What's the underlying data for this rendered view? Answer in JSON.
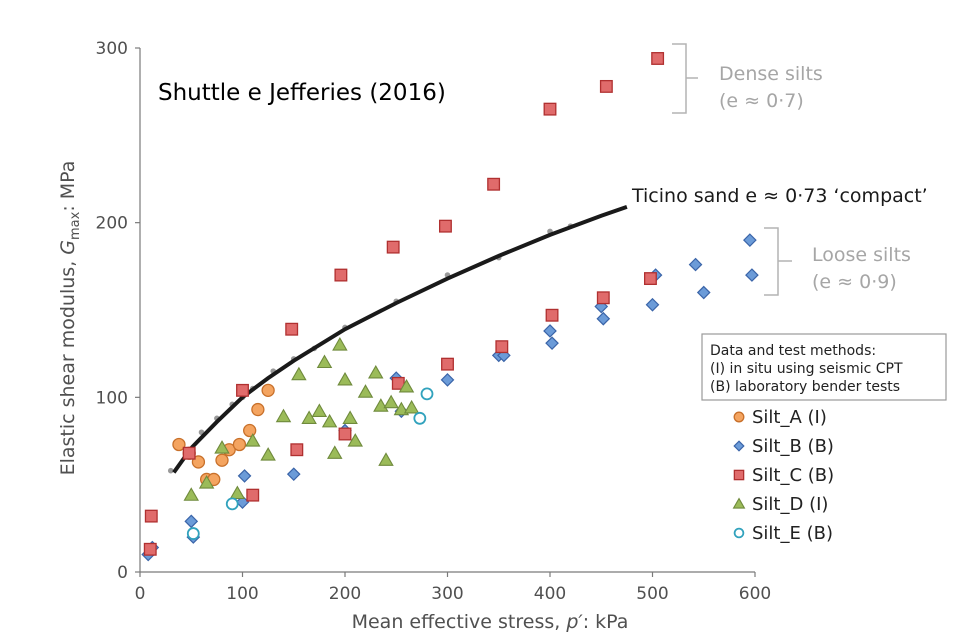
{
  "chart_data": {
    "type": "scatter",
    "title": "Shuttle e Jefferies (2016)",
    "xlabel_parts": [
      "Mean effective stress, ",
      "p′",
      ": kPa"
    ],
    "ylabel_parts": [
      "Elastic shear modulus, ",
      "G",
      "max",
      ": MPa"
    ],
    "xlim": [
      0,
      600
    ],
    "ylim": [
      0,
      300
    ],
    "xticks": [
      "0",
      "100",
      "200",
      "300",
      "400",
      "500",
      "600"
    ],
    "yticks": [
      "0",
      "100",
      "200",
      "300"
    ],
    "xtick_values": [
      0,
      100,
      200,
      300,
      400,
      500,
      600
    ],
    "ytick_values": [
      0,
      100,
      200,
      300
    ],
    "reference_curve": {
      "label": "Ticino sand e ≈ 0·73 ‘compact’",
      "x": [
        33,
        50,
        75,
        100,
        125,
        150,
        200,
        250,
        300,
        350,
        400,
        450,
        475
      ],
      "y": [
        57,
        71,
        86,
        100,
        111,
        121,
        139,
        154,
        168,
        181,
        193,
        204,
        209
      ]
    },
    "reference_points": {
      "x": [
        30,
        45,
        60,
        75,
        90,
        100,
        110,
        130,
        150,
        170,
        200,
        250,
        300,
        350,
        400,
        420
      ],
      "y": [
        58,
        68,
        80,
        88,
        96,
        100,
        105,
        115,
        122,
        128,
        140,
        155,
        170,
        180,
        195,
        198
      ]
    },
    "annotations": {
      "dense": {
        "line1": "Dense silts",
        "line2": "(e ≈ 0·7)"
      },
      "loose": {
        "line1": "Loose silts",
        "line2": "(e ≈ 0·9)"
      }
    },
    "legend_box": {
      "title": "Data and test methods:",
      "line1": "(I) in situ using seismic CPT",
      "line2": "(B) laboratory bender tests"
    },
    "series": [
      {
        "name": "Silt_A (I)",
        "marker": "circle",
        "color": "#f4a460",
        "stroke": "#c8702a",
        "x": [
          38,
          48,
          57,
          65,
          72,
          80,
          87,
          97,
          107,
          115,
          125
        ],
        "y": [
          73,
          68,
          63,
          53,
          53,
          64,
          70,
          73,
          81,
          93,
          104
        ]
      },
      {
        "name": "Silt_B (B)",
        "marker": "diamond",
        "color": "#6b9bd8",
        "stroke": "#3a64a8",
        "x": [
          8,
          12,
          50,
          52,
          100,
          102,
          150,
          200,
          250,
          255,
          300,
          350,
          355,
          400,
          402,
          450,
          452,
          500,
          503,
          542,
          550,
          595,
          597
        ],
        "y": [
          10,
          14,
          29,
          20,
          40,
          55,
          56,
          81,
          111,
          92,
          110,
          124,
          124,
          138,
          131,
          152,
          145,
          153,
          170,
          176,
          160,
          190,
          170
        ]
      },
      {
        "name": "Silt_C (B)",
        "marker": "square",
        "color": "#e06b6b",
        "stroke": "#b03030",
        "x": [
          10,
          11,
          48,
          100,
          110,
          148,
          153,
          196,
          200,
          247,
          252,
          298,
          300,
          345,
          353,
          400,
          402,
          452,
          455,
          498,
          505
        ],
        "y": [
          13,
          32,
          68,
          104,
          44,
          139,
          70,
          170,
          79,
          186,
          108,
          198,
          119,
          222,
          129,
          265,
          147,
          157,
          278,
          168,
          294
        ]
      },
      {
        "name": "Silt_D (I)",
        "marker": "triangle",
        "color": "#9bbb59",
        "stroke": "#6f8a3c",
        "x": [
          50,
          65,
          80,
          95,
          110,
          125,
          140,
          155,
          165,
          175,
          185,
          195,
          200,
          205,
          210,
          220,
          230,
          235,
          240,
          245,
          255,
          260,
          265,
          190,
          180
        ],
        "y": [
          44,
          51,
          71,
          45,
          75,
          67,
          89,
          113,
          88,
          92,
          86,
          130,
          110,
          88,
          75,
          103,
          114,
          95,
          64,
          97,
          93,
          106,
          94,
          68,
          120
        ]
      },
      {
        "name": "Silt_E (B)",
        "marker": "open-circle",
        "color": "#ffffff",
        "stroke": "#31a2bd",
        "x": [
          52,
          90,
          273,
          280
        ],
        "y": [
          22,
          39,
          88,
          102
        ]
      }
    ]
  }
}
